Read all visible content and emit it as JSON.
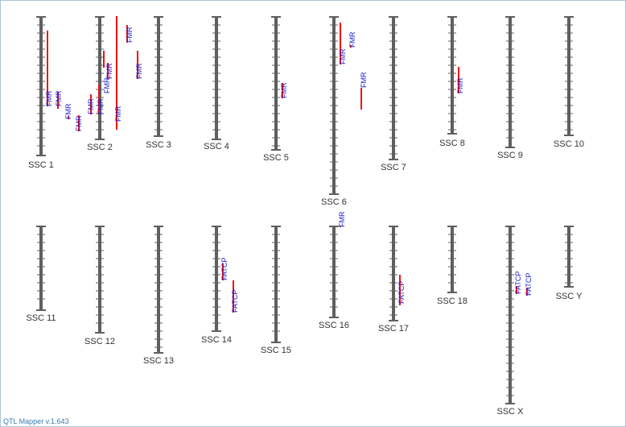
{
  "app": {
    "version_label": "QTL Mapper v.1.643"
  },
  "colors": {
    "chromosome": "#5f5f5f",
    "qtl_bar": "#ee1111",
    "qtl_label": "#1a1acc",
    "chr_label": "#333333"
  },
  "chromosomes": [
    {
      "name": "SSC 1",
      "qtls": [
        {
          "trait": "FMR"
        },
        {
          "trait": "FMR"
        },
        {
          "trait": "FMR"
        },
        {
          "trait": "FMR"
        }
      ]
    },
    {
      "name": "SSC 2",
      "qtls": [
        {
          "trait": "FMR"
        },
        {
          "trait": "FMR"
        },
        {
          "trait": "FMR"
        },
        {
          "trait": "FMR"
        },
        {
          "trait": "FMR"
        },
        {
          "trait": "FMR"
        },
        {
          "trait": "FMR"
        }
      ]
    },
    {
      "name": "SSC 3",
      "qtls": []
    },
    {
      "name": "SSC 4",
      "qtls": []
    },
    {
      "name": "SSC 5",
      "qtls": [
        {
          "trait": "FMR"
        }
      ]
    },
    {
      "name": "SSC 6",
      "qtls": [
        {
          "trait": "FMR"
        },
        {
          "trait": "FMR"
        },
        {
          "trait": "FMR"
        }
      ]
    },
    {
      "name": "SSC 7",
      "qtls": []
    },
    {
      "name": "SSC 8",
      "qtls": [
        {
          "trait": "FMR"
        }
      ]
    },
    {
      "name": "SSC 9",
      "qtls": []
    },
    {
      "name": "SSC 10",
      "qtls": []
    },
    {
      "name": "SSC 11",
      "qtls": []
    },
    {
      "name": "SSC 12",
      "qtls": []
    },
    {
      "name": "SSC 13",
      "qtls": []
    },
    {
      "name": "SSC 14",
      "qtls": [
        {
          "trait": "FATCP"
        },
        {
          "trait": "FATCP"
        }
      ]
    },
    {
      "name": "SSC 15",
      "qtls": []
    },
    {
      "name": "SSC 16",
      "qtls": [
        {
          "trait": "FMR"
        }
      ]
    },
    {
      "name": "SSC 17",
      "qtls": [
        {
          "trait": "FATCP"
        }
      ]
    },
    {
      "name": "SSC 18",
      "qtls": []
    },
    {
      "name": "SSC X",
      "qtls": [
        {
          "trait": "FATCP"
        },
        {
          "trait": "FATCP"
        }
      ]
    },
    {
      "name": "SSC Y",
      "qtls": []
    }
  ]
}
